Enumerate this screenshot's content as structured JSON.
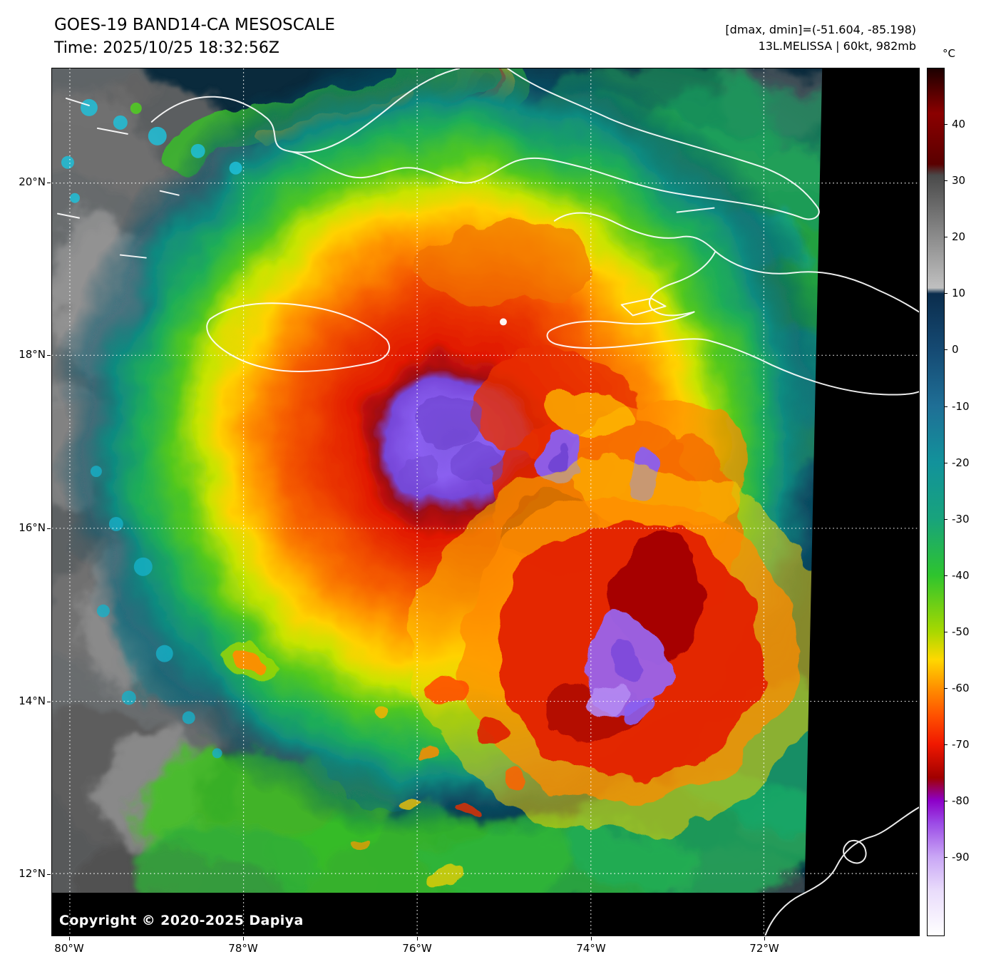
{
  "header": {
    "title": "GOES-19 BAND14-CA MESOSCALE",
    "time": "Time: 2025/10/25 18:32:56Z",
    "dminmax": "[dmax, dmin]=(-51.604, -85.198)",
    "storm": "13L.MELISSA | 60kt, 982mb"
  },
  "map": {
    "copyright": "Copyright © 2020-2025 Dapiya"
  },
  "axes": {
    "lat": [
      "20°N",
      "18°N",
      "16°N",
      "14°N",
      "12°N"
    ],
    "lon": [
      "80°W",
      "78°W",
      "76°W",
      "74°W",
      "72°W"
    ]
  },
  "colorbar": {
    "unit": "°C",
    "domain_max": 50,
    "domain_min": -104,
    "ticks": [
      "40",
      "30",
      "20",
      "10",
      "0",
      "-10",
      "-20",
      "-30",
      "-40",
      "-50",
      "-60",
      "-70",
      "-80",
      "-90"
    ],
    "stops": [
      {
        "t": 50,
        "c": "#1c0000"
      },
      {
        "t": 42,
        "c": "#8b0000"
      },
      {
        "t": 33,
        "c": "#5a0000"
      },
      {
        "t": 31,
        "c": "#4a4a4a"
      },
      {
        "t": 20,
        "c": "#8c8c8c"
      },
      {
        "t": 11,
        "c": "#c0c0c0"
      },
      {
        "t": 10,
        "c": "#0b2d4d"
      },
      {
        "t": 0,
        "c": "#154a73"
      },
      {
        "t": -10,
        "c": "#1f6f96"
      },
      {
        "t": -20,
        "c": "#12929b"
      },
      {
        "t": -30,
        "c": "#18a37c"
      },
      {
        "t": -40,
        "c": "#2ec42e"
      },
      {
        "t": -50,
        "c": "#a8d800"
      },
      {
        "t": -55,
        "c": "#ffd800"
      },
      {
        "t": -60,
        "c": "#ff9000"
      },
      {
        "t": -65,
        "c": "#ff5000"
      },
      {
        "t": -70,
        "c": "#f01800"
      },
      {
        "t": -76,
        "c": "#a00000"
      },
      {
        "t": -80,
        "c": "#8d00c8"
      },
      {
        "t": -84,
        "c": "#9b4ae6"
      },
      {
        "t": -90,
        "c": "#c9a6f5"
      },
      {
        "t": -96,
        "c": "#e9dcfb"
      },
      {
        "t": -104,
        "c": "#ffffff"
      }
    ]
  }
}
